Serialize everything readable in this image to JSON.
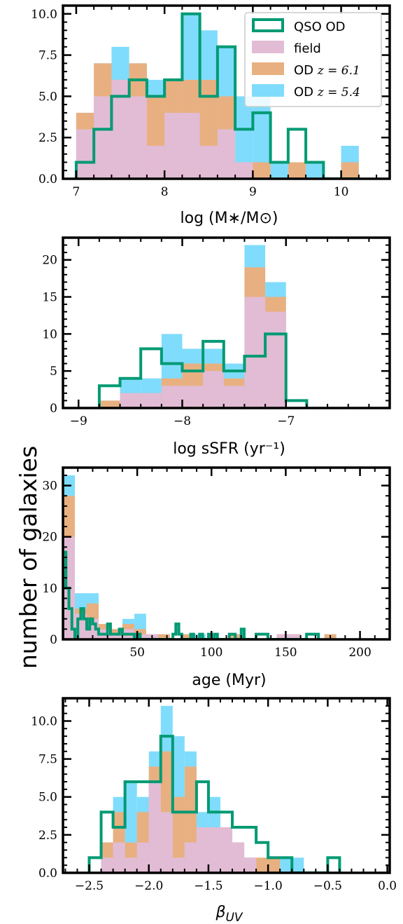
{
  "figure": {
    "shared_ylabel": "number of galaxies"
  },
  "chart_data": [
    {
      "type": "histogram",
      "xlabel": "log (M∗/M⊙)",
      "ylabel": "",
      "xlim": [
        6.85,
        10.55
      ],
      "ylim": [
        0,
        10.5
      ],
      "xticks": [
        7,
        8,
        9,
        10
      ],
      "xtick_labels": [
        "7",
        "8",
        "9",
        "10"
      ],
      "yticks": [
        0,
        2.5,
        5,
        7.5,
        10
      ],
      "ytick_labels": [
        "0.0",
        "2.5",
        "5.0",
        "7.5",
        "10.0"
      ],
      "legend": {
        "placement": "top-right",
        "entries": [
          {
            "series": "QSO OD",
            "label": "QSO OD"
          },
          {
            "series": "field",
            "label": "field"
          },
          {
            "series": "OD z=6.1",
            "label_prefix": "OD ",
            "label_math": "z = 6.1"
          },
          {
            "series": "OD z=5.4",
            "label_prefix": "OD ",
            "label_math": "z = 5.4"
          }
        ]
      },
      "bins": [
        7.0,
        7.2,
        7.4,
        7.6,
        7.8,
        8.0,
        8.2,
        8.4,
        8.6,
        8.8,
        9.0,
        9.2,
        9.4,
        9.6,
        9.8,
        10.0,
        10.2
      ],
      "series": [
        {
          "name": "OD z=5.4",
          "style": "filled",
          "color": "#80dcfc",
          "counts": [
            4,
            7,
            8,
            7,
            6,
            6,
            10,
            9,
            8,
            5,
            5,
            1,
            1,
            1,
            0,
            2
          ]
        },
        {
          "name": "OD z=6.1",
          "style": "filled",
          "color": "#e8b080",
          "counts": [
            4,
            7,
            6,
            7,
            5,
            6,
            6,
            6,
            5,
            1,
            1,
            0,
            1,
            0,
            0,
            1
          ]
        },
        {
          "name": "field",
          "style": "filled",
          "color": "#e2bcd4",
          "counts": [
            3,
            5,
            6,
            5,
            2,
            4,
            4,
            2,
            3,
            1,
            0,
            0,
            0,
            0,
            0,
            0
          ]
        },
        {
          "name": "QSO OD",
          "style": "step",
          "color": "#009a73",
          "counts": [
            1,
            3,
            5,
            6,
            5,
            6,
            10,
            5,
            8,
            3,
            4,
            1,
            3,
            1,
            0,
            0
          ]
        }
      ]
    },
    {
      "type": "histogram",
      "xlabel": "log sSFR (yr⁻¹)",
      "ylabel": "",
      "xlim": [
        -9.15,
        -6.0
      ],
      "ylim": [
        0,
        23
      ],
      "xticks": [
        -9,
        -8,
        -7
      ],
      "xtick_labels": [
        "−9",
        "−8",
        "−7"
      ],
      "yticks": [
        0,
        5,
        10,
        15,
        20
      ],
      "ytick_labels": [
        "0",
        "5",
        "10",
        "15",
        "20"
      ],
      "bins": [
        -8.8,
        -8.6,
        -8.4,
        -8.2,
        -8.0,
        -7.8,
        -7.6,
        -7.4,
        -7.2,
        -7.0,
        -6.8
      ],
      "series": [
        {
          "name": "OD z=5.4",
          "style": "filled",
          "color": "#80dcfc",
          "counts": [
            1,
            4,
            4,
            10,
            8,
            8,
            6,
            22,
            17,
            0
          ]
        },
        {
          "name": "OD z=6.1",
          "style": "filled",
          "color": "#e8b080",
          "counts": [
            1,
            2,
            2,
            4,
            6,
            6,
            4,
            19,
            15,
            0
          ]
        },
        {
          "name": "field",
          "style": "filled",
          "color": "#e2bcd4",
          "counts": [
            0,
            2,
            2,
            3,
            3,
            5,
            3,
            15,
            13,
            0
          ]
        },
        {
          "name": "QSO OD",
          "style": "step",
          "color": "#009a73",
          "counts": [
            3,
            4,
            8,
            6,
            5,
            9,
            5,
            7,
            10,
            1
          ]
        }
      ]
    },
    {
      "type": "histogram",
      "xlabel": "age (Myr)",
      "ylabel": "",
      "xlim": [
        0,
        220
      ],
      "ylim": [
        0,
        33.5
      ],
      "xticks": [
        50,
        100,
        150,
        200
      ],
      "xtick_labels": [
        "50",
        "100",
        "150",
        "200"
      ],
      "yticks": [
        0,
        10,
        20,
        30
      ],
      "ytick_labels": [
        "0",
        "10",
        "20",
        "30"
      ],
      "bins": [
        0,
        8,
        16,
        24,
        32,
        40,
        48,
        56,
        64,
        72,
        80,
        88,
        96,
        104,
        112,
        120,
        128,
        136,
        144,
        152,
        160,
        168,
        176,
        184,
        192
      ],
      "series": [
        {
          "name": "OD z=5.4",
          "style": "filled",
          "color": "#80dcfc",
          "counts": [
            32,
            9,
            9,
            2,
            2,
            4,
            5,
            1,
            1,
            0,
            1,
            1,
            0,
            0,
            1,
            0,
            0,
            0,
            1,
            1,
            0,
            0,
            1,
            0
          ]
        },
        {
          "name": "OD z=6.1",
          "style": "filled",
          "color": "#e8b080",
          "counts": [
            28,
            6,
            7,
            3,
            2,
            3,
            2,
            1,
            1,
            0,
            1,
            0,
            0,
            0,
            1,
            0,
            0,
            0,
            1,
            1,
            0,
            0,
            1,
            0
          ]
        },
        {
          "name": "field",
          "style": "filled",
          "color": "#e2bcd4",
          "counts": [
            20,
            5,
            4,
            2,
            1,
            2,
            1,
            1,
            0,
            0,
            0,
            0,
            0,
            0,
            0,
            0,
            0,
            0,
            1,
            1,
            0,
            0,
            0,
            0
          ]
        }
      ],
      "step_line": {
        "name": "QSO OD",
        "color": "#009a73",
        "edges": [
          0,
          2,
          4,
          6,
          8,
          10,
          12,
          14,
          16,
          18,
          20,
          22,
          24,
          26,
          28,
          30,
          32,
          34,
          36,
          38,
          40,
          42,
          44,
          46,
          48,
          50,
          52,
          54,
          56,
          58,
          60,
          62,
          64,
          66,
          68,
          70,
          72,
          74,
          76,
          78,
          80,
          82,
          84,
          86,
          88,
          90,
          92,
          94,
          96,
          98,
          100,
          102,
          104,
          106,
          108,
          110,
          112,
          114,
          116,
          118,
          120,
          122,
          124,
          126,
          128,
          130,
          132,
          134,
          136,
          138,
          140,
          142,
          144,
          146,
          148,
          150,
          152,
          154,
          156,
          158,
          160,
          162,
          164,
          166,
          168,
          170,
          172
        ],
        "counts": [
          17,
          10,
          6,
          2,
          0,
          4,
          6,
          4,
          2,
          4,
          3,
          2,
          1,
          1,
          1,
          3,
          1,
          1,
          1,
          2,
          1,
          1,
          1,
          1,
          0,
          1,
          0,
          0,
          0,
          0,
          0,
          0,
          0,
          0,
          0,
          0,
          0,
          1,
          3,
          1,
          0,
          0,
          0,
          1,
          0,
          0,
          1,
          0,
          0,
          1,
          0,
          1,
          0,
          0,
          0,
          0,
          1,
          1,
          0,
          0,
          2,
          0,
          0,
          0,
          0,
          1,
          1,
          1,
          1,
          0,
          0,
          0,
          0,
          0,
          0,
          0,
          0,
          0,
          0,
          0,
          0,
          0,
          1,
          1,
          1,
          1
        ]
      }
    },
    {
      "type": "histogram",
      "xlabel": "β",
      "xlabel_sub": "UV",
      "ylabel": "",
      "xlim": [
        -2.72,
        0.02
      ],
      "ylim": [
        0,
        11.5
      ],
      "xticks": [
        -2.5,
        -2.0,
        -1.5,
        -1.0,
        -0.5,
        0.0
      ],
      "xtick_labels": [
        "−2.5",
        "−2.0",
        "−1.5",
        "−1.0",
        "−0.5",
        "0.0"
      ],
      "yticks": [
        0,
        2.5,
        5,
        7.5,
        10
      ],
      "ytick_labels": [
        "0.0",
        "2.5",
        "5.0",
        "7.5",
        "10.0"
      ],
      "bins": [
        -2.5,
        -2.4,
        -2.3,
        -2.2,
        -2.1,
        -2.0,
        -1.9,
        -1.8,
        -1.7,
        -1.6,
        -1.5,
        -1.4,
        -1.3,
        -1.2,
        -1.1,
        -1.0,
        -0.9,
        -0.8,
        -0.7,
        -0.6,
        -0.5,
        -0.4
      ],
      "series": [
        {
          "name": "OD z=5.4",
          "style": "filled",
          "color": "#80dcfc",
          "counts": [
            0,
            2,
            5,
            6,
            5,
            8,
            11,
            9,
            8,
            4,
            5,
            3,
            2,
            1,
            0,
            1,
            1,
            1,
            0,
            0,
            0
          ]
        },
        {
          "name": "OD z=6.1",
          "style": "filled",
          "color": "#e8b080",
          "counts": [
            0,
            2,
            4,
            2,
            4,
            7,
            8,
            5,
            7,
            3,
            3,
            3,
            2,
            1,
            1,
            1,
            0,
            0,
            0,
            0,
            0
          ]
        },
        {
          "name": "field",
          "style": "filled",
          "color": "#e2bcd4",
          "counts": [
            0,
            1,
            2,
            1,
            2,
            6,
            4,
            1,
            2,
            3,
            3,
            3,
            2,
            1,
            0,
            0,
            0,
            0,
            0,
            0,
            0
          ]
        },
        {
          "name": "QSO OD",
          "style": "step",
          "color": "#009a73",
          "counts": [
            1,
            4,
            3,
            6,
            6,
            6,
            9,
            4,
            4,
            6,
            4,
            4,
            3,
            3,
            2,
            1,
            1,
            0,
            0,
            0,
            1
          ]
        }
      ]
    }
  ]
}
